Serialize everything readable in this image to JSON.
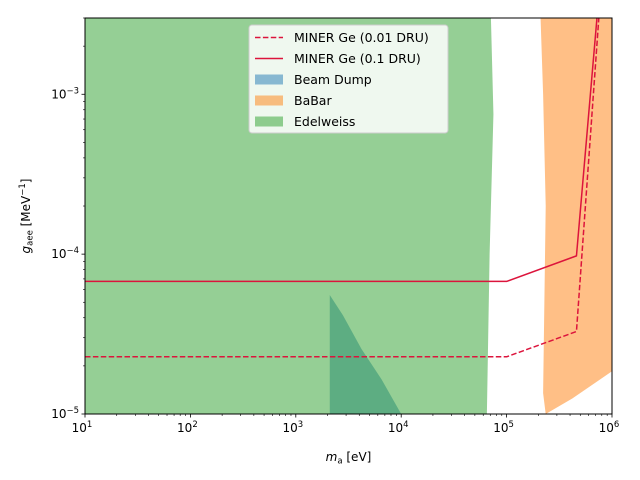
{
  "chart_data": {
    "type": "line",
    "xscale": "log",
    "yscale": "log",
    "xlim": [
      10,
      1000000
    ],
    "ylim": [
      1e-05,
      0.003
    ],
    "xlabel": {
      "base": "m",
      "sub": "a",
      "unit": " [eV]"
    },
    "ylabel": {
      "base": "g",
      "sub": "aee",
      "unit_pre": " [MeV",
      "unit_sup": "−1",
      "unit_post": "]"
    },
    "x_ticks": [
      {
        "value": 10,
        "base": "10",
        "exp": "1"
      },
      {
        "value": 100,
        "base": "10",
        "exp": "2"
      },
      {
        "value": 1000,
        "base": "10",
        "exp": "3"
      },
      {
        "value": 10000,
        "base": "10",
        "exp": "4"
      },
      {
        "value": 100000,
        "base": "10",
        "exp": "5"
      },
      {
        "value": 1000000,
        "base": "10",
        "exp": "6"
      }
    ],
    "y_ticks": [
      {
        "value": 1e-05,
        "base": "10",
        "exp": "−5"
      },
      {
        "value": 0.0001,
        "base": "10",
        "exp": "−4"
      },
      {
        "value": 0.001,
        "base": "10",
        "exp": "−3"
      }
    ],
    "legend_position": "top-center",
    "lines": [
      {
        "name": "MINER Ge (0.01 DRU)",
        "style": "dashed",
        "color": "#dc143c",
        "x": [
          10,
          100000,
          460000,
          750000
        ],
        "y": [
          2.28e-05,
          2.28e-05,
          3.28e-05,
          0.003
        ]
      },
      {
        "name": "MINER Ge (0.1 DRU)",
        "style": "solid",
        "color": "#dc143c",
        "x": [
          10,
          100000,
          460000,
          720000
        ],
        "y": [
          6.75e-05,
          6.75e-05,
          9.75e-05,
          0.003
        ]
      }
    ],
    "regions": [
      {
        "name": "Beam Dump",
        "color": "#1f77b4",
        "alpha": 0.5,
        "x": [
          2100,
          2800,
          4200,
          6500,
          10000,
          2100
        ],
        "y": [
          5.55e-05,
          4.15e-05,
          2.55e-05,
          1.65e-05,
          1e-05,
          1e-05
        ]
      },
      {
        "name": "BaBar",
        "color": "#ff7f0e",
        "alpha": 0.5,
        "x": [
          210000,
          1000000,
          1000000,
          420000,
          235000,
          222000,
          235000,
          222000,
          210000
        ],
        "y": [
          0.003,
          0.003,
          1.85e-05,
          1.25e-05,
          1e-05,
          1.35e-05,
          0.0002,
          0.001,
          0.003
        ]
      },
      {
        "name": "Edelweiss",
        "color": "#2ca02c",
        "alpha": 0.5,
        "x": [
          10,
          71000,
          75000,
          69000,
          65000,
          10
        ],
        "y": [
          0.003,
          0.003,
          0.00075,
          0.0001,
          1e-05,
          1e-05
        ]
      }
    ]
  }
}
